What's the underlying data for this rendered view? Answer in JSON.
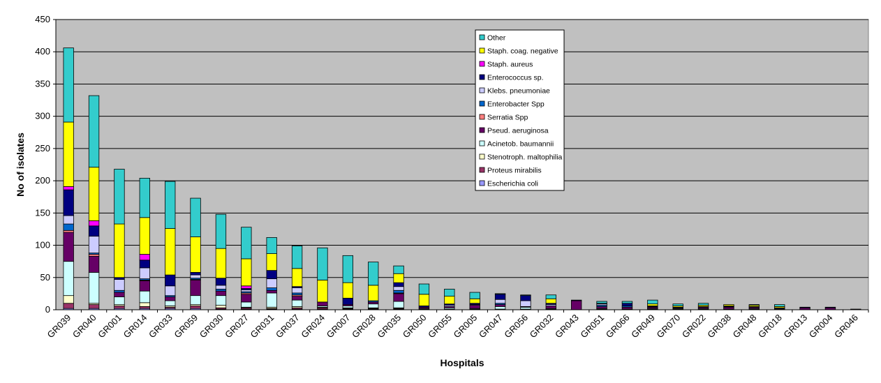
{
  "chart_data": {
    "type": "bar",
    "stacked": true,
    "xlabel": "Hospitals",
    "ylabel": "No of isolates",
    "ylim": [
      0,
      450
    ],
    "ytick_step": 50,
    "grid": true,
    "legend_position": "top-center",
    "plot_background": "#c0c0c0",
    "categories": [
      "GR039",
      "GR040",
      "GR001",
      "GR014",
      "GR033",
      "GR059",
      "GR030",
      "GR027",
      "GR031",
      "GR037",
      "GR024",
      "GR007",
      "GR028",
      "GR035",
      "GR050",
      "GR055",
      "GR005",
      "GR047",
      "GR056",
      "GR032",
      "GR043",
      "GR051",
      "GR066",
      "GR049",
      "GR070",
      "GR022",
      "GR038",
      "GR048",
      "GR018",
      "GR013",
      "GR004",
      "GR046"
    ],
    "series": [
      {
        "name": "Escherichia coli",
        "color": "#9999ff",
        "values": [
          2,
          2,
          2,
          2,
          2,
          2,
          1,
          1,
          1,
          1,
          1,
          1,
          1,
          1,
          0,
          0,
          0,
          0,
          0,
          0,
          0,
          0,
          0,
          0,
          0,
          0,
          0,
          0,
          0,
          0,
          0,
          0
        ]
      },
      {
        "name": "Proteus mirabilis",
        "color": "#993366",
        "values": [
          8,
          6,
          4,
          3,
          2,
          4,
          2,
          2,
          1,
          2,
          2,
          1,
          1,
          1,
          0,
          0,
          0,
          0,
          0,
          0,
          0,
          0,
          0,
          0,
          0,
          0,
          0,
          0,
          0,
          0,
          0,
          0
        ]
      },
      {
        "name": "Stenotroph. maltophilia",
        "color": "#ffffcc",
        "values": [
          12,
          2,
          2,
          6,
          2,
          2,
          4,
          1,
          2,
          2,
          1,
          1,
          1,
          1,
          1,
          1,
          1,
          1,
          1,
          1,
          0,
          1,
          0,
          1,
          1,
          1,
          0,
          1,
          1,
          0,
          0,
          0
        ]
      },
      {
        "name": "Acinetob. baumannii",
        "color": "#ccffff",
        "values": [
          53,
          48,
          12,
          18,
          8,
          14,
          15,
          8,
          22,
          10,
          2,
          3,
          6,
          10,
          1,
          2,
          1,
          4,
          3,
          1,
          0,
          1,
          1,
          1,
          1,
          1,
          1,
          1,
          1,
          0,
          0,
          0
        ]
      },
      {
        "name": "Pseud. aeruginosa",
        "color": "#660066",
        "values": [
          45,
          25,
          7,
          16,
          6,
          24,
          7,
          12,
          4,
          6,
          6,
          2,
          3,
          12,
          2,
          2,
          5,
          3,
          1,
          4,
          14,
          3,
          3,
          2,
          1,
          2,
          3,
          2,
          1,
          3,
          3,
          1
        ]
      },
      {
        "name": "Serratia Spp",
        "color": "#ff8080",
        "values": [
          3,
          3,
          0,
          1,
          0,
          1,
          0,
          2,
          0,
          2,
          0,
          0,
          0,
          1,
          0,
          0,
          0,
          0,
          0,
          0,
          0,
          0,
          0,
          0,
          0,
          0,
          0,
          0,
          0,
          0,
          0,
          0
        ]
      },
      {
        "name": "Enterobacter Spp",
        "color": "#0066cc",
        "values": [
          10,
          2,
          3,
          2,
          2,
          2,
          3,
          2,
          4,
          3,
          0,
          0,
          2,
          4,
          0,
          0,
          0,
          2,
          0,
          0,
          0,
          2,
          2,
          0,
          0,
          0,
          1,
          0,
          0,
          0,
          0,
          0
        ]
      },
      {
        "name": "Klebs. pneumoniae",
        "color": "#ccccff",
        "values": [
          13,
          26,
          17,
          17,
          15,
          5,
          6,
          3,
          14,
          8,
          0,
          0,
          0,
          6,
          0,
          2,
          1,
          6,
          9,
          2,
          0,
          2,
          0,
          1,
          0,
          0,
          0,
          0,
          0,
          0,
          0,
          0
        ]
      },
      {
        "name": "Enterococcus sp.",
        "color": "#000080",
        "values": [
          40,
          16,
          3,
          12,
          17,
          4,
          11,
          2,
          13,
          2,
          0,
          10,
          0,
          6,
          2,
          2,
          2,
          8,
          8,
          2,
          1,
          1,
          4,
          1,
          1,
          1,
          1,
          1,
          0,
          1,
          1,
          0
        ]
      },
      {
        "name": "Staph. aureus",
        "color": "#ff00ff",
        "values": [
          5,
          8,
          0,
          9,
          0,
          0,
          0,
          4,
          0,
          0,
          0,
          0,
          0,
          0,
          0,
          0,
          0,
          0,
          0,
          0,
          0,
          0,
          0,
          0,
          0,
          0,
          0,
          0,
          0,
          0,
          0,
          0
        ]
      },
      {
        "name": "Staph. coag. negative",
        "color": "#ffff00",
        "values": [
          100,
          83,
          83,
          57,
          72,
          55,
          46,
          42,
          26,
          28,
          34,
          24,
          24,
          14,
          18,
          12,
          7,
          0,
          0,
          7,
          0,
          0,
          0,
          3,
          2,
          2,
          2,
          2,
          2,
          0,
          0,
          0
        ]
      },
      {
        "name": "Other",
        "color": "#33cccc",
        "values": [
          115,
          111,
          85,
          61,
          73,
          60,
          53,
          49,
          25,
          35,
          50,
          42,
          36,
          12,
          16,
          11,
          10,
          1,
          1,
          6,
          0,
          3,
          3,
          6,
          3,
          3,
          0,
          1,
          3,
          0,
          0,
          0
        ]
      }
    ]
  }
}
